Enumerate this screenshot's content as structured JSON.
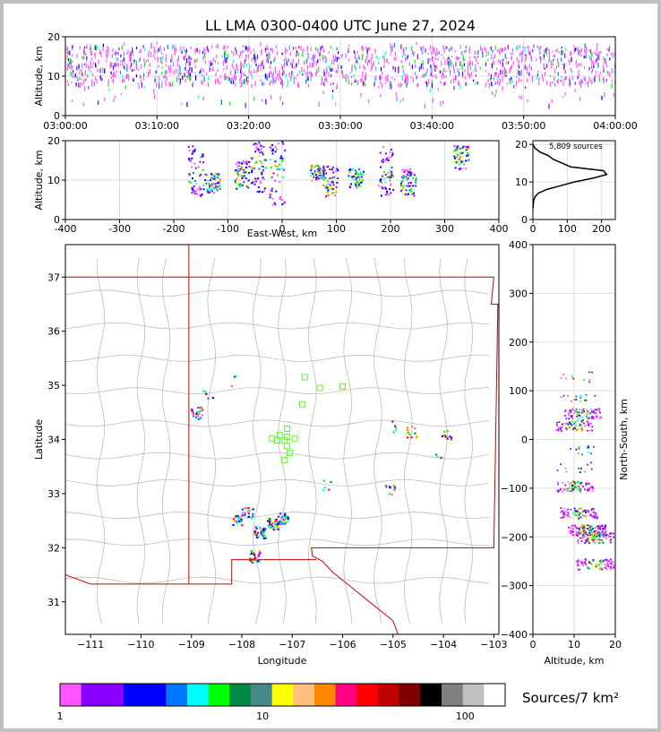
{
  "title": "LL LMA 0300-0400 UTC June 27, 2024",
  "colors": {
    "frame": "#c0c0c0",
    "plot_bg": "#ffffff",
    "grid": "#dddddd",
    "state_line": "#cc0000",
    "county_line": "#b4b4b4",
    "station": "#66ee33",
    "histogram": "#000000"
  },
  "chart_data": [
    {
      "name": "time-height",
      "type": "scatter",
      "ylabel": "Altitude, km",
      "xlabel": "",
      "xlim": [
        "03:00:00",
        "04:00:00"
      ],
      "ylim": [
        0,
        20
      ],
      "x_ticks": [
        "03:00:00",
        "03:10:00",
        "03:20:00",
        "03:30:00",
        "03:40:00",
        "03:50:00",
        "04:00:00"
      ],
      "y_ticks": [
        0,
        10,
        20
      ],
      "grid": true,
      "description_of_marks": "dense lightning source density, mostly 8-18 km altitude throughout the hour"
    },
    {
      "name": "east-west-altitude",
      "type": "scatter",
      "xlabel": "East-West, km",
      "ylabel": "Altitude, km",
      "xlim": [
        -400,
        400
      ],
      "ylim": [
        0,
        20
      ],
      "x_ticks": [
        -400,
        -300,
        -200,
        -100,
        0,
        100,
        200,
        300,
        400
      ],
      "y_ticks": [
        0,
        10,
        20
      ],
      "grid": true,
      "clusters_km": [
        {
          "x": -160,
          "low": 6,
          "high": 19,
          "peak": 11
        },
        {
          "x": -130,
          "low": 7,
          "high": 12,
          "peak": 10
        },
        {
          "x": -75,
          "low": 8,
          "high": 15,
          "peak": 11
        },
        {
          "x": -45,
          "low": 7,
          "high": 20,
          "peak": 14
        },
        {
          "x": -10,
          "low": 4,
          "high": 20,
          "peak": 13
        },
        {
          "x": 65,
          "low": 10,
          "high": 14,
          "peak": 12
        },
        {
          "x": 88,
          "low": 6,
          "high": 14,
          "peak": 9
        },
        {
          "x": 135,
          "low": 8,
          "high": 13,
          "peak": 11
        },
        {
          "x": 190,
          "low": 6,
          "high": 19,
          "peak": 12
        },
        {
          "x": 232,
          "low": 6,
          "high": 13,
          "peak": 9
        },
        {
          "x": 330,
          "low": 13,
          "high": 19,
          "peak": 16
        }
      ]
    },
    {
      "name": "altitude-histogram",
      "type": "line",
      "annotation": "5,809 sources",
      "xlim": [
        0,
        240
      ],
      "ylim": [
        0,
        21
      ],
      "x_ticks": [
        0,
        100,
        200
      ],
      "y_ticks": [
        0,
        10,
        20
      ],
      "profile": [
        {
          "alt": 3,
          "count": 0
        },
        {
          "alt": 5,
          "count": 2
        },
        {
          "alt": 6,
          "count": 6
        },
        {
          "alt": 7,
          "count": 15
        },
        {
          "alt": 8,
          "count": 40
        },
        {
          "alt": 9,
          "count": 80
        },
        {
          "alt": 10,
          "count": 120
        },
        {
          "alt": 11,
          "count": 175
        },
        {
          "alt": 12,
          "count": 215
        },
        {
          "alt": 13,
          "count": 205
        },
        {
          "alt": 14,
          "count": 110
        },
        {
          "alt": 15,
          "count": 85
        },
        {
          "alt": 16,
          "count": 60
        },
        {
          "alt": 17,
          "count": 45
        },
        {
          "alt": 18,
          "count": 20
        },
        {
          "alt": 19,
          "count": 6
        },
        {
          "alt": 20,
          "count": 0
        }
      ]
    },
    {
      "name": "plan-view-map",
      "type": "scatter",
      "xlabel": "Longitude",
      "ylabel": "Latitude",
      "xlim": [
        -111.5,
        -102.9
      ],
      "ylim": [
        30.4,
        37.6
      ],
      "x_ticks": [
        -111,
        -110,
        -109,
        -108,
        -107,
        -106,
        -105,
        -104,
        -103
      ],
      "y_ticks": [
        31,
        32,
        33,
        34,
        35,
        36,
        37
      ],
      "clusters": [
        {
          "lon": -108.9,
          "lat": 34.5,
          "n": 22
        },
        {
          "lon": -108.7,
          "lat": 34.8,
          "n": 6
        },
        {
          "lon": -107.4,
          "lat": 32.45,
          "n": 40
        },
        {
          "lon": -107.2,
          "lat": 32.55,
          "n": 35
        },
        {
          "lon": -107.65,
          "lat": 32.3,
          "n": 30
        },
        {
          "lon": -107.75,
          "lat": 31.85,
          "n": 30
        },
        {
          "lon": -107.9,
          "lat": 32.65,
          "n": 20
        },
        {
          "lon": -108.1,
          "lat": 32.5,
          "n": 20
        },
        {
          "lon": -105.05,
          "lat": 33.1,
          "n": 10
        },
        {
          "lon": -104.65,
          "lat": 34.15,
          "n": 12
        },
        {
          "lon": -103.95,
          "lat": 34.1,
          "n": 12
        },
        {
          "lon": -105.0,
          "lat": 34.25,
          "n": 5
        },
        {
          "lon": -106.3,
          "lat": 33.15,
          "n": 5
        },
        {
          "lon": -108.2,
          "lat": 35.1,
          "n": 4
        },
        {
          "lon": -104.1,
          "lat": 33.75,
          "n": 4
        }
      ],
      "stations": [
        {
          "lon": -106.75,
          "lat": 35.15
        },
        {
          "lon": -106.45,
          "lat": 34.95
        },
        {
          "lon": -106.0,
          "lat": 34.98
        },
        {
          "lon": -106.8,
          "lat": 34.65
        },
        {
          "lon": -107.1,
          "lat": 34.2
        },
        {
          "lon": -107.25,
          "lat": 34.08
        },
        {
          "lon": -107.4,
          "lat": 34.02
        },
        {
          "lon": -107.3,
          "lat": 33.98
        },
        {
          "lon": -107.15,
          "lat": 33.98
        },
        {
          "lon": -107.1,
          "lat": 33.88
        },
        {
          "lon": -107.05,
          "lat": 33.75
        },
        {
          "lon": -106.95,
          "lat": 34.02
        },
        {
          "lon": -107.15,
          "lat": 33.62
        },
        {
          "lon": -107.1,
          "lat": 34.05
        }
      ]
    },
    {
      "name": "north-south-altitude",
      "type": "scatter",
      "xlabel": "Altitude, km",
      "ylabel": "North-South, km",
      "xlim": [
        0,
        20
      ],
      "ylim": [
        -400,
        400
      ],
      "x_ticks": [
        0,
        10,
        20
      ],
      "y_ticks": [
        -400,
        -300,
        -200,
        -100,
        0,
        100,
        200,
        300,
        400
      ],
      "clusters_km": [
        {
          "y": 130,
          "alt": 11,
          "n": 5
        },
        {
          "y": 90,
          "alt": 11,
          "n": 8
        },
        {
          "y": 55,
          "alt": 12,
          "n": 40
        },
        {
          "y": 30,
          "alt": 10,
          "n": 35
        },
        {
          "y": -20,
          "alt": 12,
          "n": 6
        },
        {
          "y": -55,
          "alt": 10,
          "n": 6
        },
        {
          "y": -95,
          "alt": 10,
          "n": 40
        },
        {
          "y": -150,
          "alt": 11,
          "n": 40
        },
        {
          "y": -185,
          "alt": 13,
          "n": 70
        },
        {
          "y": -200,
          "alt": 15,
          "n": 40
        },
        {
          "y": -255,
          "alt": 15,
          "n": 40
        }
      ]
    }
  ],
  "colorbar": {
    "label": "Sources/7 km²",
    "tick_labels": [
      "1",
      "10",
      "100"
    ],
    "colors": [
      "#ff55ff",
      "#8800ff",
      "#8800ff",
      "#0000ff",
      "#0000ff",
      "#0077ff",
      "#00ffff",
      "#00ff00",
      "#008844",
      "#448888",
      "#ffff00",
      "#ffc080",
      "#ff8800",
      "#ff0080",
      "#ff0000",
      "#c00000",
      "#800000",
      "#000000",
      "#808080",
      "#c0c0c0",
      "#ffffff"
    ]
  }
}
